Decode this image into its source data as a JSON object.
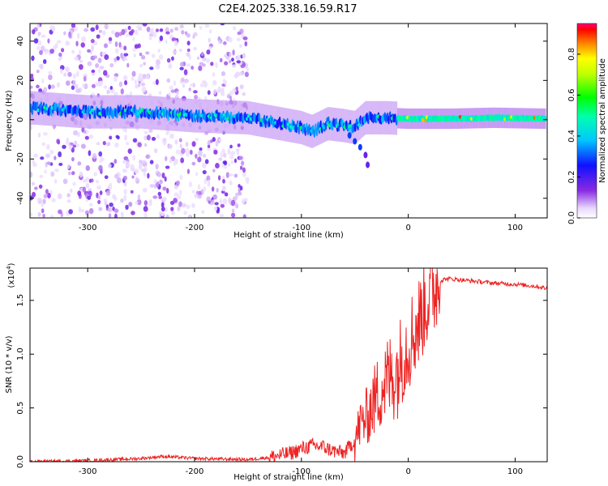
{
  "title": "C2E4.2025.338.16.59.R17",
  "colors": {
    "snr_line": "#ee2222",
    "frame": "#000000"
  },
  "chart_data": [
    {
      "type": "heatmap",
      "title": "C2E4.2025.338.16.59.R17",
      "xlabel": "Height of straight line (km)",
      "ylabel": "Frequency (Hz)",
      "xlim": [
        -354,
        130
      ],
      "ylim": [
        -50,
        49
      ],
      "xticks": [
        -300,
        -200,
        -100,
        0,
        100
      ],
      "xtick_labels": [
        "-300",
        "-200",
        "-100",
        "0",
        "100"
      ],
      "yticks": [
        -40,
        -20,
        0,
        20,
        40
      ],
      "ytick_labels": [
        "-40",
        "-20",
        "0",
        "20",
        "40"
      ],
      "ridge": {
        "x": [
          -350,
          -300,
          -250,
          -200,
          -150,
          -120,
          -100,
          -90,
          -75,
          -60,
          -50,
          -40,
          -30,
          -20,
          0,
          40,
          80,
          130
        ],
        "freq_hz": [
          6,
          4,
          4,
          2,
          1,
          -2,
          -4,
          -6,
          -2,
          -3,
          -4,
          1,
          1,
          1,
          0.5,
          0.5,
          1,
          0.5
        ]
      },
      "noise_region_km": [
        -354,
        -150
      ],
      "branch": {
        "x": [
          -55,
          -50,
          -45,
          -40,
          -38
        ],
        "freq_hz": [
          -8,
          -11,
          -14,
          -18,
          -23
        ]
      },
      "colorbar": {
        "label": "Normalized spectral amplitude",
        "range": [
          0,
          0.95
        ],
        "ticks": [
          0.0,
          0.2,
          0.4,
          0.6,
          0.8
        ],
        "tick_labels": [
          "0.0",
          "0.2",
          "0.4",
          "0.6",
          "0.8"
        ]
      }
    },
    {
      "type": "line",
      "xlabel": "Height of straight line (km)",
      "ylabel": "SNR (10 * v/v)",
      "y_multiplier": "(x10",
      "y_multiplier_exp": "4",
      "y_multiplier_close": ")",
      "xlim": [
        -354,
        130
      ],
      "ylim": [
        0,
        1.8
      ],
      "xticks": [
        -300,
        -200,
        -100,
        0,
        100
      ],
      "xtick_labels": [
        "-300",
        "-200",
        "-100",
        "0",
        "100"
      ],
      "yticks": [
        0.0,
        0.5,
        1.0,
        1.5
      ],
      "ytick_labels": [
        "0.0",
        "0.5",
        "1.0",
        "1.5"
      ],
      "series": [
        {
          "name": "SNR",
          "x": [
            -354,
            -300,
            -250,
            -230,
            -200,
            -150,
            -130,
            -110,
            -100,
            -90,
            -80,
            -70,
            -60,
            -50,
            -45,
            -40,
            -35,
            -30,
            -25,
            -20,
            -15,
            -10,
            -5,
            0,
            5,
            10,
            15,
            20,
            25,
            30,
            35,
            40,
            60,
            80,
            100,
            120,
            130
          ],
          "y": [
            0.0,
            0.01,
            0.03,
            0.05,
            0.03,
            0.02,
            0.04,
            0.08,
            0.12,
            0.15,
            0.14,
            0.1,
            0.08,
            0.2,
            0.35,
            0.4,
            0.5,
            0.6,
            0.7,
            0.75,
            0.8,
            0.85,
            1.0,
            1.1,
            1.2,
            1.3,
            1.45,
            1.55,
            1.62,
            1.68,
            1.7,
            1.7,
            1.68,
            1.66,
            1.65,
            1.63,
            1.61
          ]
        }
      ]
    }
  ]
}
